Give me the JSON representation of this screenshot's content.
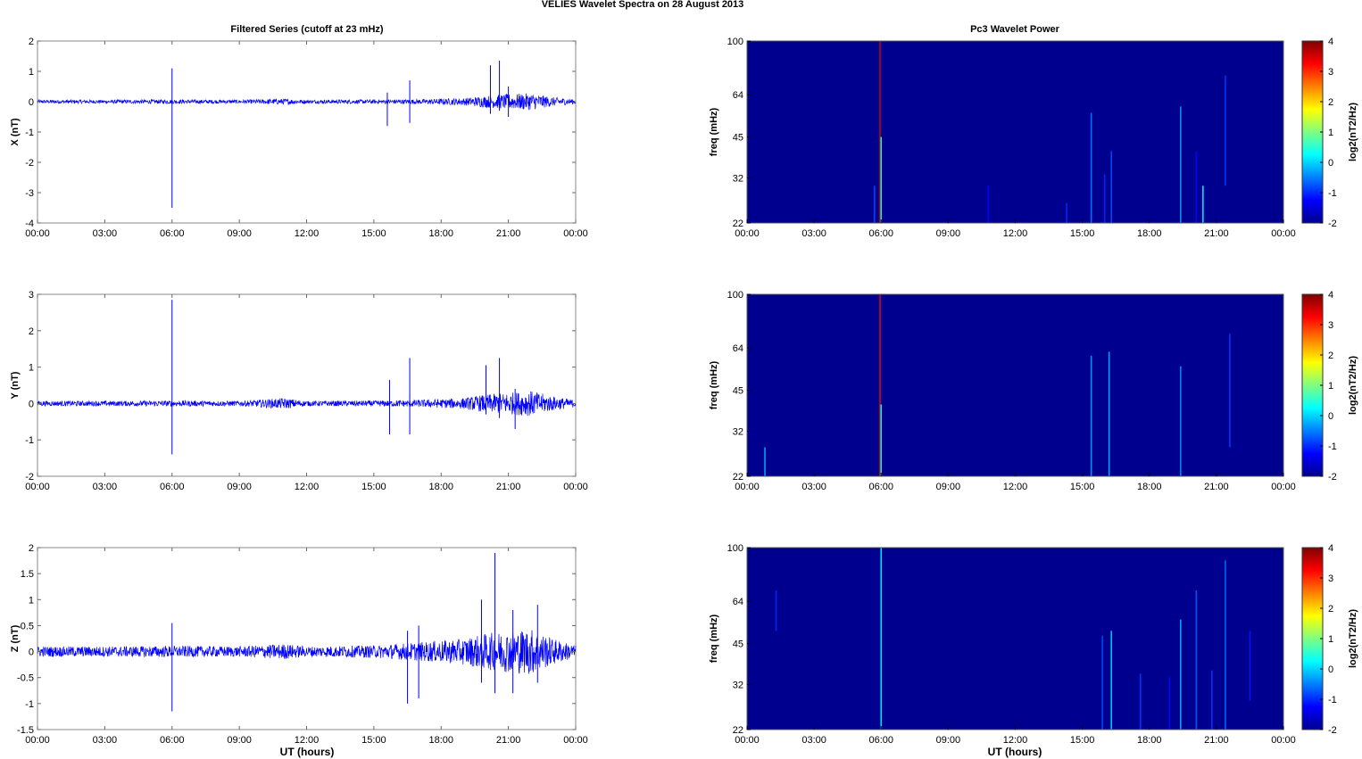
{
  "figure": {
    "title": "VELIES Wavelet Spectra on 28 August    2013",
    "left_title": "Filtered Series (cutoff at 23 mHz)",
    "right_title": "Pc3 Wavelet Power",
    "xlabel": "UT (hours)"
  },
  "colors": {
    "trace": "#0000ff",
    "background_power": "#00008f",
    "colormap": [
      "#00008f",
      "#0000ff",
      "#0080ff",
      "#00ffff",
      "#80ff80",
      "#ffff00",
      "#ff8000",
      "#ff0000",
      "#800000"
    ]
  },
  "chart_data": [
    {
      "type": "line",
      "panel": "X",
      "ylabel": "X (nT)",
      "xticks": [
        "00:00",
        "03:00",
        "06:00",
        "09:00",
        "12:00",
        "15:00",
        "18:00",
        "21:00",
        "00:00"
      ],
      "x_range_hours": [
        0,
        24
      ],
      "ylim": [
        -4,
        2
      ],
      "yticks": [
        "2",
        "1",
        "0",
        "-1",
        "-2",
        "-3",
        "-4"
      ],
      "ytick_values": [
        2,
        1,
        0,
        -1,
        -2,
        -3,
        -4
      ],
      "envelope": {
        "x": [
          0,
          3,
          6,
          9,
          11,
          12,
          15,
          17,
          19,
          20,
          21,
          22,
          23,
          24
        ],
        "amplitude": [
          0.06,
          0.06,
          0.07,
          0.06,
          0.1,
          0.06,
          0.07,
          0.08,
          0.12,
          0.2,
          0.25,
          0.28,
          0.15,
          0.08
        ]
      },
      "spikes": [
        {
          "x": 6.0,
          "min": -3.5,
          "max": 1.1
        },
        {
          "x": 15.6,
          "min": -0.8,
          "max": 0.3
        },
        {
          "x": 16.6,
          "min": -0.7,
          "max": 0.7
        },
        {
          "x": 20.2,
          "min": -0.4,
          "max": 1.2
        },
        {
          "x": 20.6,
          "min": -0.3,
          "max": 1.35
        },
        {
          "x": 21.0,
          "min": -0.5,
          "max": 0.5
        }
      ]
    },
    {
      "type": "line",
      "panel": "Y",
      "ylabel": "Y (nT)",
      "xticks": [
        "00:00",
        "03:00",
        "06:00",
        "09:00",
        "12:00",
        "15:00",
        "18:00",
        "21:00",
        "00:00"
      ],
      "x_range_hours": [
        0,
        24
      ],
      "ylim": [
        -2,
        3
      ],
      "yticks": [
        "3",
        "2",
        "1",
        "0",
        "-1",
        "-2"
      ],
      "ytick_values": [
        3,
        2,
        1,
        0,
        -1,
        -2
      ],
      "envelope": {
        "x": [
          0,
          3,
          6,
          9,
          11,
          12,
          15,
          17,
          19,
          20,
          21,
          22,
          23,
          24
        ],
        "amplitude": [
          0.07,
          0.07,
          0.08,
          0.07,
          0.15,
          0.07,
          0.08,
          0.1,
          0.15,
          0.25,
          0.3,
          0.35,
          0.2,
          0.1
        ]
      },
      "spikes": [
        {
          "x": 6.0,
          "min": -1.4,
          "max": 2.85
        },
        {
          "x": 15.7,
          "min": -0.85,
          "max": 0.65
        },
        {
          "x": 16.6,
          "min": -0.85,
          "max": 1.25
        },
        {
          "x": 20.0,
          "min": -0.3,
          "max": 1.05
        },
        {
          "x": 20.6,
          "min": -0.4,
          "max": 1.25
        },
        {
          "x": 21.3,
          "min": -0.7,
          "max": 0.4
        }
      ]
    },
    {
      "type": "line",
      "panel": "Z",
      "ylabel": "Z (nT)",
      "xticks": [
        "00:00",
        "03:00",
        "06:00",
        "09:00",
        "12:00",
        "15:00",
        "18:00",
        "21:00",
        "00:00"
      ],
      "x_range_hours": [
        0,
        24
      ],
      "ylim": [
        -1.5,
        2
      ],
      "yticks": [
        "2",
        "1.5",
        "1",
        "0.5",
        "0",
        "-0.5",
        "-1",
        "-1.5"
      ],
      "ytick_values": [
        2,
        1.5,
        1,
        0.5,
        0,
        -0.5,
        -1,
        -1.5
      ],
      "envelope": {
        "x": [
          0,
          3,
          6,
          9,
          11,
          12,
          15,
          17,
          19,
          20,
          21,
          22,
          23,
          24
        ],
        "amplitude": [
          0.1,
          0.1,
          0.11,
          0.1,
          0.15,
          0.1,
          0.12,
          0.18,
          0.25,
          0.35,
          0.4,
          0.45,
          0.25,
          0.12
        ]
      },
      "spikes": [
        {
          "x": 6.0,
          "min": -1.15,
          "max": 0.55
        },
        {
          "x": 16.5,
          "min": -1.0,
          "max": 0.4
        },
        {
          "x": 17.0,
          "min": -0.9,
          "max": 0.5
        },
        {
          "x": 19.8,
          "min": -0.6,
          "max": 1.0
        },
        {
          "x": 20.4,
          "min": -0.8,
          "max": 1.9
        },
        {
          "x": 21.2,
          "min": -0.8,
          "max": 0.8
        },
        {
          "x": 22.3,
          "min": -0.6,
          "max": 0.9
        }
      ]
    },
    {
      "type": "heatmap",
      "panel": "X",
      "ylabel": "freq (mHz)",
      "yticks": [
        "100",
        "64",
        "45",
        "32",
        "22"
      ],
      "ytick_values": [
        100,
        64,
        45,
        32,
        22
      ],
      "y_scale": "log",
      "ylim": [
        22,
        100
      ],
      "xticks": [
        "00:00",
        "03:00",
        "06:00",
        "09:00",
        "12:00",
        "15:00",
        "18:00",
        "21:00",
        "00:00"
      ],
      "x_range_hours": [
        0,
        24
      ],
      "colorbar_label": "log2(nT2/Hz)",
      "colorbar_ticks": [
        "4",
        "3",
        "2",
        "1",
        "0",
        "-1",
        "-2"
      ],
      "colorbar_range": [
        -2,
        4
      ],
      "streaks": [
        {
          "x": 5.7,
          "fmin": 22,
          "fmax": 30,
          "level": -0.8
        },
        {
          "x": 5.95,
          "fmin": 22,
          "fmax": 100,
          "level": 3.5
        },
        {
          "x": 6.0,
          "fmin": 22,
          "fmax": 45,
          "level": 0.5
        },
        {
          "x": 10.8,
          "fmin": 22,
          "fmax": 30,
          "level": -1.2
        },
        {
          "x": 14.3,
          "fmin": 22,
          "fmax": 26,
          "level": -1.0
        },
        {
          "x": 15.4,
          "fmin": 22,
          "fmax": 55,
          "level": -0.5
        },
        {
          "x": 16.0,
          "fmin": 22,
          "fmax": 33,
          "level": -1.0
        },
        {
          "x": 16.3,
          "fmin": 22,
          "fmax": 40,
          "level": -0.8
        },
        {
          "x": 19.4,
          "fmin": 22,
          "fmax": 58,
          "level": -0.3
        },
        {
          "x": 20.1,
          "fmin": 22,
          "fmax": 40,
          "level": -1.2
        },
        {
          "x": 20.4,
          "fmin": 22,
          "fmax": 30,
          "level": 0.2
        },
        {
          "x": 21.4,
          "fmin": 30,
          "fmax": 75,
          "level": -0.9
        }
      ]
    },
    {
      "type": "heatmap",
      "panel": "Y",
      "ylabel": "freq (mHz)",
      "yticks": [
        "100",
        "64",
        "45",
        "32",
        "22"
      ],
      "ytick_values": [
        100,
        64,
        45,
        32,
        22
      ],
      "y_scale": "log",
      "ylim": [
        22,
        100
      ],
      "xticks": [
        "00:00",
        "03:00",
        "06:00",
        "09:00",
        "12:00",
        "15:00",
        "18:00",
        "21:00",
        "00:00"
      ],
      "x_range_hours": [
        0,
        24
      ],
      "colorbar_label": "log2(nT2/Hz)",
      "colorbar_ticks": [
        "4",
        "3",
        "2",
        "1",
        "0",
        "-1",
        "-2"
      ],
      "colorbar_range": [
        -2,
        4
      ],
      "streaks": [
        {
          "x": 0.8,
          "fmin": 22,
          "fmax": 28,
          "level": -0.2
        },
        {
          "x": 5.95,
          "fmin": 22,
          "fmax": 100,
          "level": 3.3
        },
        {
          "x": 6.0,
          "fmin": 22,
          "fmax": 40,
          "level": 0.3
        },
        {
          "x": 15.4,
          "fmin": 22,
          "fmax": 60,
          "level": -0.3
        },
        {
          "x": 16.2,
          "fmin": 22,
          "fmax": 62,
          "level": -0.2
        },
        {
          "x": 19.4,
          "fmin": 22,
          "fmax": 55,
          "level": -0.4
        },
        {
          "x": 21.6,
          "fmin": 28,
          "fmax": 72,
          "level": -0.9
        }
      ]
    },
    {
      "type": "heatmap",
      "panel": "Z",
      "ylabel": "freq (mHz)",
      "yticks": [
        "100",
        "64",
        "45",
        "32",
        "22"
      ],
      "ytick_values": [
        100,
        64,
        45,
        32,
        22
      ],
      "y_scale": "log",
      "ylim": [
        22,
        100
      ],
      "xticks": [
        "00:00",
        "03:00",
        "06:00",
        "09:00",
        "12:00",
        "15:00",
        "18:00",
        "21:00",
        "00:00"
      ],
      "x_range_hours": [
        0,
        24
      ],
      "colorbar_label": "log2(nT2/Hz)",
      "colorbar_ticks": [
        "4",
        "3",
        "2",
        "1",
        "0",
        "-1",
        "-2"
      ],
      "colorbar_range": [
        -2,
        4
      ],
      "streaks": [
        {
          "x": 1.3,
          "fmin": 50,
          "fmax": 70,
          "level": -1.0
        },
        {
          "x": 6.0,
          "fmin": 22,
          "fmax": 100,
          "level": 0.2
        },
        {
          "x": 15.9,
          "fmin": 22,
          "fmax": 48,
          "level": -0.8
        },
        {
          "x": 16.3,
          "fmin": 22,
          "fmax": 50,
          "level": 0.0
        },
        {
          "x": 17.6,
          "fmin": 22,
          "fmax": 35,
          "level": -0.9
        },
        {
          "x": 18.9,
          "fmin": 22,
          "fmax": 34,
          "level": -1.2
        },
        {
          "x": 19.4,
          "fmin": 22,
          "fmax": 55,
          "level": -0.2
        },
        {
          "x": 20.1,
          "fmin": 22,
          "fmax": 70,
          "level": -0.7
        },
        {
          "x": 20.8,
          "fmin": 22,
          "fmax": 36,
          "level": -0.9
        },
        {
          "x": 21.4,
          "fmin": 22,
          "fmax": 90,
          "level": -0.6
        },
        {
          "x": 22.5,
          "fmin": 28,
          "fmax": 50,
          "level": -1.1
        }
      ]
    }
  ]
}
